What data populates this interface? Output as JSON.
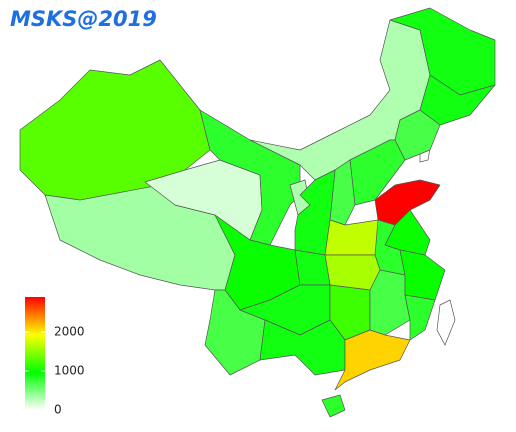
{
  "chart_data": {
    "type": "choropleth",
    "title": "MSKS@2019",
    "values": [
      1300,
      350,
      150,
      800,
      300,
      900,
      900,
      700,
      800,
      700,
      300,
      900,
      2900,
      1700,
      1000,
      800,
      1600,
      1000,
      900,
      700,
      900,
      1200,
      700,
      1000,
      800,
      900,
      2100,
      800
    ],
    "colorbar": {
      "lim": [
        0,
        2900
      ],
      "ticks": [
        0,
        1000,
        2000
      ],
      "colors": [
        "#ffffff",
        "#00ff00",
        "#ffff00",
        "#ff0000"
      ]
    }
  }
}
